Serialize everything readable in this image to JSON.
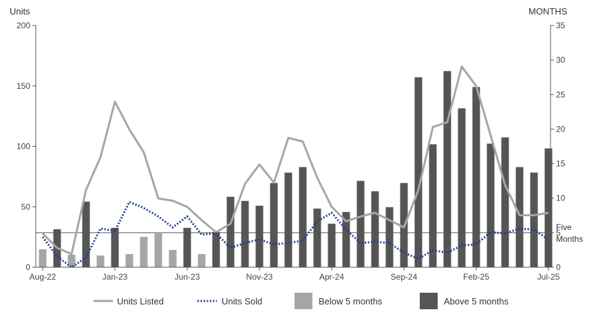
{
  "chart_data": {
    "type": "bar",
    "left_axis_title": "Units",
    "right_axis_title": "MONTHS",
    "y_left": {
      "min": 0,
      "max": 200,
      "ticks": [
        "0",
        "50",
        "100",
        "150",
        "200"
      ]
    },
    "y_right": {
      "min": 0,
      "max": 35,
      "ticks": [
        "0",
        "5",
        "10",
        "15",
        "20",
        "25",
        "30",
        "35"
      ]
    },
    "x_tick_labels": [
      {
        "index": 0,
        "label": "Aug-22"
      },
      {
        "index": 5,
        "label": "Jan-23"
      },
      {
        "index": 10,
        "label": "Jun-23"
      },
      {
        "index": 15,
        "label": "Nov-23"
      },
      {
        "index": 20,
        "label": "Apr-24"
      },
      {
        "index": 25,
        "label": "Sep-24"
      },
      {
        "index": 30,
        "label": "Feb-25"
      },
      {
        "index": 35,
        "label": "Jul-25"
      }
    ],
    "reference_line": {
      "value_months": 5,
      "label_line1": "Five",
      "label_line2": "Months"
    },
    "months_of_supply": [
      2.6,
      5.5,
      1.8,
      9.5,
      1.7,
      5.7,
      1.9,
      4.4,
      4.9,
      2.5,
      5.7,
      1.9,
      5.1,
      10.2,
      9.6,
      8.9,
      12.2,
      13.7,
      14.5,
      8.5,
      6.3,
      8.0,
      12.5,
      11.0,
      8.7,
      12.2,
      27.5,
      17.8,
      28.4,
      23.0,
      26.1,
      17.9,
      18.8,
      14.5,
      13.7,
      17.2
    ],
    "units_listed": [
      28,
      16,
      11,
      64,
      91,
      137,
      114,
      95,
      57,
      55,
      50,
      39,
      29,
      36,
      69,
      85,
      70,
      107,
      104,
      74,
      50,
      38,
      42,
      45,
      39,
      33,
      64,
      116,
      120,
      166,
      150,
      109,
      68,
      43,
      43,
      45
    ],
    "units_sold": [
      25,
      9,
      0,
      8,
      32,
      30,
      54,
      49,
      42,
      33,
      42,
      27,
      28,
      16,
      20,
      23,
      19,
      20,
      22,
      38,
      45,
      31,
      20,
      21,
      20,
      12,
      7,
      14,
      12,
      18,
      19,
      29,
      28,
      32,
      31,
      23
    ],
    "series": [
      {
        "name": "Units Listed",
        "color": "#a6a6a6",
        "style": "solid line"
      },
      {
        "name": "Units Sold",
        "color": "#1f3a93",
        "style": "dotted line"
      },
      {
        "name": "Below 5 months",
        "color": "#a6a6a6",
        "style": "bar"
      },
      {
        "name": "Above 5 months",
        "color": "#555555",
        "style": "bar"
      }
    ]
  }
}
